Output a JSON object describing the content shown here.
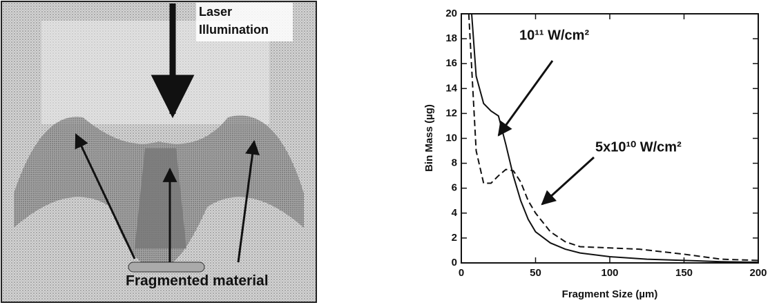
{
  "image_panel": {
    "laser_label": [
      "Laser",
      "Illumination"
    ],
    "fragment_label": "Fragmented material"
  },
  "chart_data": {
    "type": "line",
    "xlabel": "Fragment Size (µm)",
    "ylabel": "Bin Mass (µg)",
    "xlim": [
      0,
      200
    ],
    "xticks": [
      0,
      50,
      100,
      150,
      200
    ],
    "ylim": [
      0,
      20
    ],
    "yticks": [
      0,
      2,
      4,
      6,
      8,
      10,
      12,
      14,
      16,
      18,
      20
    ],
    "annotations": [
      "10¹¹ W/cm²",
      "5x10¹⁰ W/cm²"
    ],
    "series": [
      {
        "color": "#111111",
        "style": "solid",
        "x": [
          7,
          10,
          15,
          20,
          25,
          30,
          35,
          40,
          45,
          50,
          60,
          70,
          80,
          100,
          125,
          150,
          175,
          200
        ],
        "values": [
          20,
          15,
          12.8,
          12.2,
          11.8,
          9.5,
          7,
          5,
          3.5,
          2.5,
          1.6,
          1.1,
          0.8,
          0.5,
          0.3,
          0.2,
          0.1,
          0.05
        ]
      },
      {
        "color": "#111111",
        "style": "dashed",
        "x": [
          5,
          10,
          15,
          20,
          25,
          30,
          35,
          40,
          45,
          50,
          60,
          70,
          80,
          100,
          120,
          150,
          175,
          200
        ],
        "values": [
          20,
          9,
          6.4,
          6.4,
          7,
          7.5,
          7.4,
          6.5,
          5,
          4,
          2.5,
          1.7,
          1.3,
          1.2,
          1.1,
          0.7,
          0.3,
          0.2
        ]
      }
    ]
  }
}
